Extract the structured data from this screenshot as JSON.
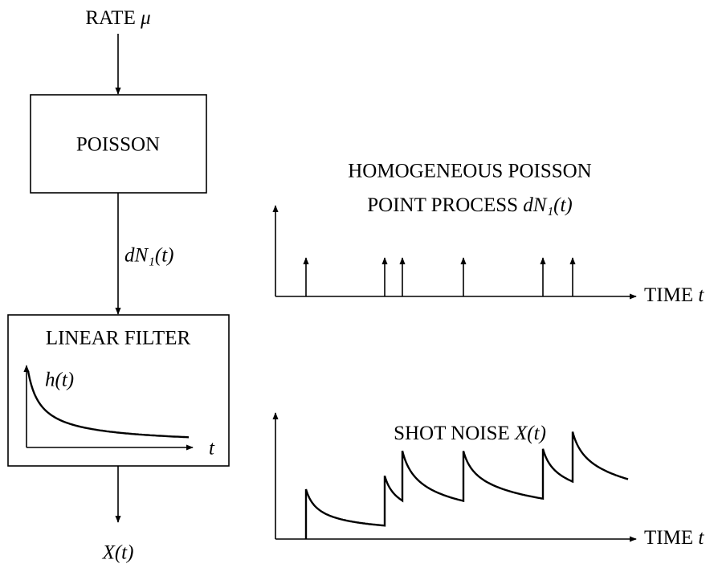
{
  "input": {
    "label": "RATE",
    "symbol": "μ"
  },
  "blocks": [
    {
      "label": "POISSON"
    },
    {
      "label": "LINEAR FILTER",
      "inset": {
        "curve_label": "h(t)",
        "axis_label": "t"
      }
    }
  ],
  "edge_label": "dN₁(t)",
  "output": {
    "label": "X(t)"
  },
  "plots": [
    {
      "title_lines": [
        "HOMOGENEOUS POISSON",
        "POINT PROCESS"
      ],
      "title_symbol": "dN₁(t)",
      "x_label": "TIME",
      "x_symbol": "t"
    },
    {
      "title": "SHOT NOISE",
      "title_symbol": "X(t)",
      "x_label": "TIME",
      "x_symbol": "t"
    }
  ]
}
